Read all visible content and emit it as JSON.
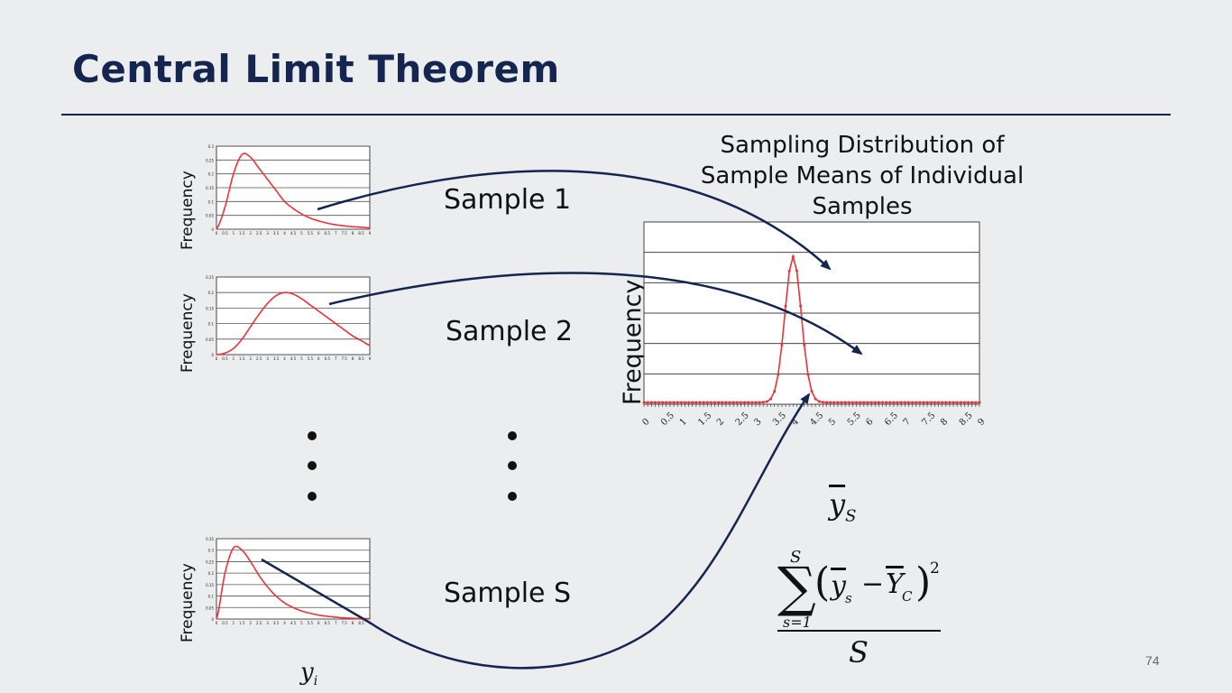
{
  "slide": {
    "title": "Central Limit Theorem",
    "page_number": "74"
  },
  "samples": [
    {
      "label": "Sample 1",
      "ylabel": "Frequency"
    },
    {
      "label": "Sample 2",
      "ylabel": "Frequency"
    },
    {
      "label": "Sample S",
      "ylabel": "Frequency"
    }
  ],
  "distribution": {
    "title": "Sampling Distribution of Sample Means of Individual Samples",
    "ylabel": "Frequency",
    "xlabel_symbol": "y",
    "xlabel_subscript": "S",
    "x_ticks": [
      "0",
      "0.5",
      "1",
      "1.5",
      "2",
      "2.5",
      "3",
      "3.5",
      "4",
      "4.5",
      "5",
      "5.5",
      "6",
      "6.5",
      "7",
      "7.5",
      "8",
      "8.5",
      "9"
    ]
  },
  "sample_axis_label": {
    "symbol": "y",
    "subscript": "i"
  },
  "formula": {
    "sum_upper": "S",
    "sum_lower": "s=1",
    "term_y": "y",
    "term_y_sub": "s",
    "term_Y": "Y",
    "term_Y_sub": "C",
    "exponent": "2",
    "denominator": "S"
  },
  "colors": {
    "title": "#14254f",
    "curve": "#e8333b",
    "arrow": "#14254f",
    "grid": "#444444",
    "background": "#ecedef"
  },
  "chart_data": [
    {
      "type": "line",
      "title": "",
      "ylabel": "Frequency",
      "x": [
        0,
        0.5,
        1,
        1.5,
        2,
        2.5,
        3,
        3.5,
        4,
        4.5,
        5,
        5.5,
        6,
        6.5,
        7,
        7.5,
        8,
        8.5,
        9
      ],
      "series": [
        {
          "values": [
            0,
            0.08,
            0.2,
            0.27,
            0.26,
            0.22,
            0.18,
            0.14,
            0.1,
            0.075,
            0.055,
            0.04,
            0.03,
            0.022,
            0.016,
            0.012,
            0.009,
            0.007,
            0.005
          ]
        }
      ],
      "ylim": [
        0,
        0.3
      ],
      "yticks": [
        "0",
        "0.05",
        "0.1",
        "0.15",
        "0.2",
        "0.25",
        "0.3"
      ]
    },
    {
      "type": "line",
      "title": "",
      "ylabel": "Frequency",
      "x": [
        0,
        0.5,
        1,
        1.5,
        2,
        2.5,
        3,
        3.5,
        4,
        4.5,
        5,
        5.5,
        6,
        6.5,
        7,
        7.5,
        8,
        8.5,
        9
      ],
      "series": [
        {
          "values": [
            0,
            0.005,
            0.02,
            0.05,
            0.09,
            0.13,
            0.165,
            0.19,
            0.2,
            0.195,
            0.18,
            0.16,
            0.14,
            0.12,
            0.1,
            0.08,
            0.06,
            0.045,
            0.03
          ]
        }
      ],
      "ylim": [
        0,
        0.25
      ],
      "yticks": [
        "0",
        "0.05",
        "0.1",
        "0.15",
        "0.2",
        "0.25"
      ]
    },
    {
      "type": "line",
      "title": "",
      "ylabel": "Frequency",
      "x": [
        0,
        0.5,
        1,
        1.5,
        2,
        2.5,
        3,
        3.5,
        4,
        4.5,
        5,
        5.5,
        6,
        6.5,
        7,
        7.5,
        8,
        8.5,
        9
      ],
      "series": [
        {
          "values": [
            0,
            0.2,
            0.31,
            0.3,
            0.25,
            0.19,
            0.14,
            0.1,
            0.07,
            0.05,
            0.035,
            0.025,
            0.017,
            0.012,
            0.008,
            0.005,
            0.003,
            0.002,
            0.001
          ]
        }
      ],
      "ylim": [
        0,
        0.35
      ],
      "yticks": [
        "0",
        "0.05",
        "0.1",
        "0.15",
        "0.2",
        "0.25",
        "0.3",
        "0.35"
      ]
    },
    {
      "type": "line",
      "title": "Sampling Distribution of Sample Means of Individual Samples",
      "ylabel": "Frequency",
      "x": [
        0,
        0.5,
        1,
        1.5,
        2,
        2.5,
        3,
        3.5,
        4,
        4.5,
        5,
        5.5,
        6,
        6.5,
        7,
        7.5,
        8,
        8.5,
        9
      ],
      "series": [
        {
          "values": [
            0,
            0,
            0,
            0,
            0,
            0,
            0,
            0.02,
            1.0,
            0.05,
            0,
            0,
            0,
            0,
            0,
            0,
            0,
            0,
            0
          ]
        }
      ],
      "peak_x": 4,
      "peak_sd": 0.22,
      "xlim": [
        0,
        9
      ],
      "ylim": [
        0,
        1.1
      ]
    }
  ]
}
